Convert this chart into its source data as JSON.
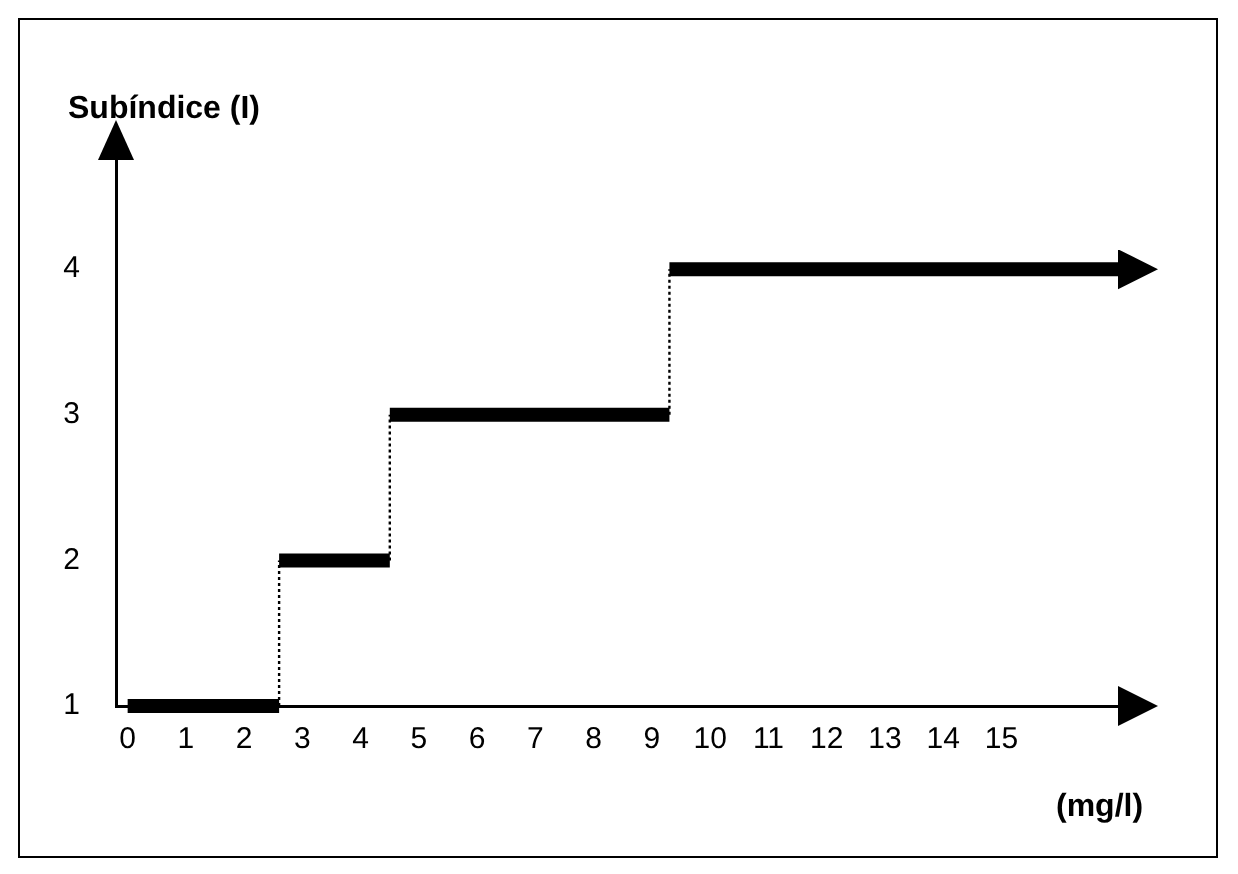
{
  "chart_data": {
    "type": "step",
    "xlabel": "(mg/l)",
    "ylabel": "Subíndice (I)",
    "x": [
      0,
      2.6,
      4.5,
      9.3,
      17
    ],
    "values": [
      1,
      2,
      3,
      4,
      4
    ],
    "color": "#000000",
    "xlim": [
      -0.2,
      17
    ],
    "xticks": [
      0,
      1,
      2,
      3,
      4,
      5,
      6,
      7,
      8,
      9,
      10,
      11,
      12,
      13,
      14,
      15
    ],
    "ylim": [
      1,
      4.75
    ],
    "yticks": [
      1,
      2,
      3,
      4
    ],
    "grid": false,
    "legend": false
  }
}
